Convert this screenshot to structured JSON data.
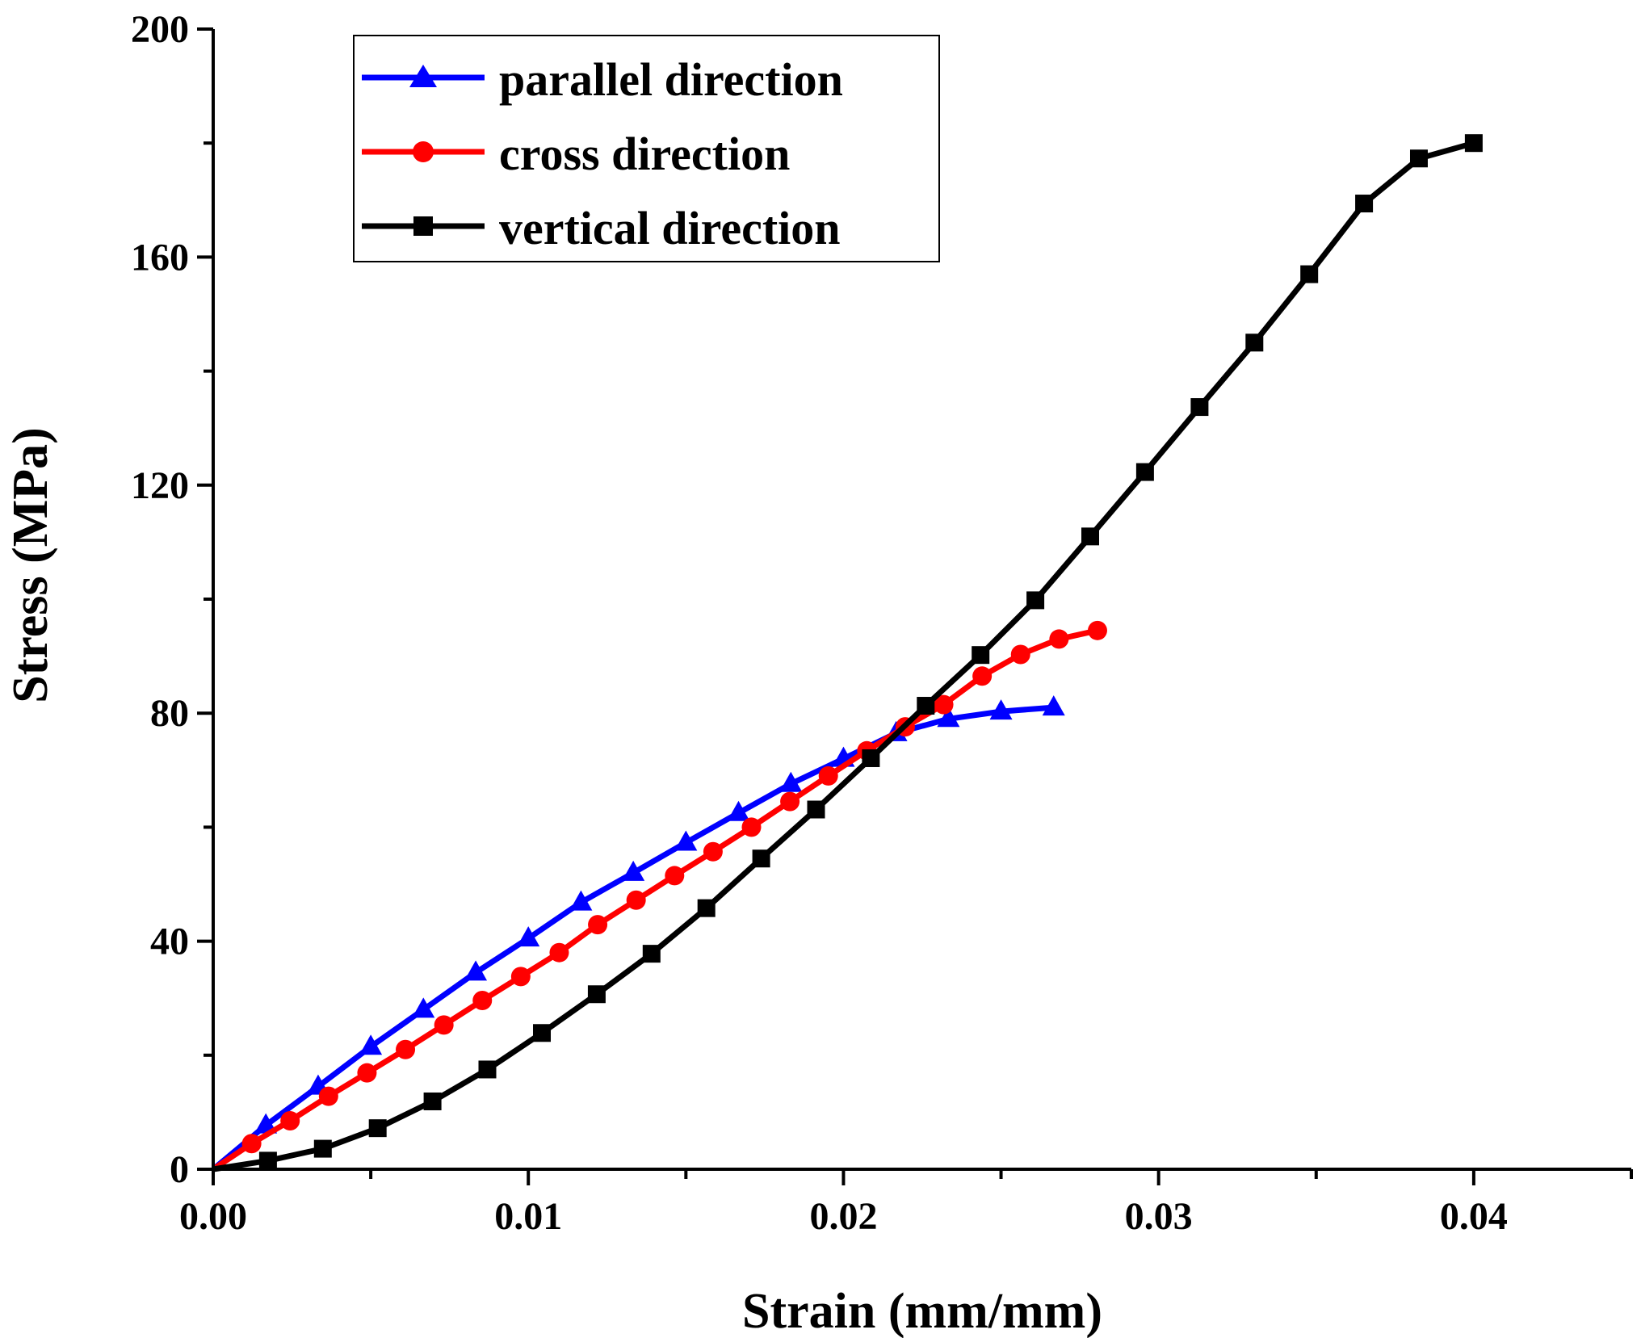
{
  "chart_data": {
    "type": "line",
    "title": "",
    "xlabel": "Strain (mm/mm)",
    "ylabel": "Stress (MPa)",
    "xlim": [
      0,
      0.045
    ],
    "ylim": [
      0,
      200
    ],
    "x_ticks": [
      0.0,
      0.01,
      0.02,
      0.03,
      0.04
    ],
    "x_tick_labels": [
      "0.00",
      "0.01",
      "0.02",
      "0.03",
      "0.04"
    ],
    "y_ticks": [
      0,
      40,
      80,
      120,
      160,
      200
    ],
    "y_tick_labels": [
      "0",
      "40",
      "80",
      "120",
      "160",
      "200"
    ],
    "grid": false,
    "legend_position": "top-left",
    "series": [
      {
        "name": "parallel direction",
        "color": "#0000ff",
        "marker": "triangle",
        "x": [
          0,
          0.00167,
          0.00333,
          0.005,
          0.00667,
          0.00833,
          0.01,
          0.01167,
          0.01333,
          0.015,
          0.01667,
          0.01833,
          0.02,
          0.02167,
          0.02333,
          0.025,
          0.02667
        ],
        "y": [
          0,
          7.7,
          14.5,
          21.5,
          28,
          34.5,
          40.5,
          46.8,
          52,
          57.3,
          62.5,
          67.6,
          72,
          76.5,
          79,
          80.3,
          81
        ]
      },
      {
        "name": "cross direction",
        "color": "#ff0000",
        "marker": "circle",
        "x": [
          0,
          0.00122,
          0.00244,
          0.00366,
          0.00488,
          0.0061,
          0.00732,
          0.00854,
          0.00976,
          0.01098,
          0.0122,
          0.01342,
          0.01464,
          0.01586,
          0.01708,
          0.0183,
          0.01952,
          0.02074,
          0.02196,
          0.02318,
          0.0244,
          0.02562,
          0.02684,
          0.02806
        ],
        "y": [
          0,
          4.5,
          8.5,
          12.8,
          16.9,
          21,
          25.3,
          29.6,
          33.8,
          38,
          42.9,
          47.2,
          51.5,
          55.7,
          60,
          64.5,
          69,
          73.4,
          77.6,
          81.5,
          86.5,
          90.3,
          93,
          94.5
        ]
      },
      {
        "name": "vertical direction",
        "color": "#000000",
        "marker": "square",
        "x": [
          0,
          0.00174,
          0.00348,
          0.00522,
          0.00696,
          0.0087,
          0.01043,
          0.01217,
          0.01391,
          0.01565,
          0.01739,
          0.01913,
          0.02087,
          0.02261,
          0.02435,
          0.02609,
          0.02783,
          0.02957,
          0.0313,
          0.03304,
          0.03478,
          0.03652,
          0.03826,
          0.04
        ],
        "y": [
          0,
          1.5,
          3.6,
          7.2,
          11.9,
          17.5,
          23.9,
          30.7,
          37.8,
          45.8,
          54.5,
          63.1,
          72.1,
          81.3,
          90.2,
          99.8,
          111,
          122.3,
          133.7,
          145,
          157,
          169.4,
          177.3,
          180
        ]
      }
    ]
  }
}
